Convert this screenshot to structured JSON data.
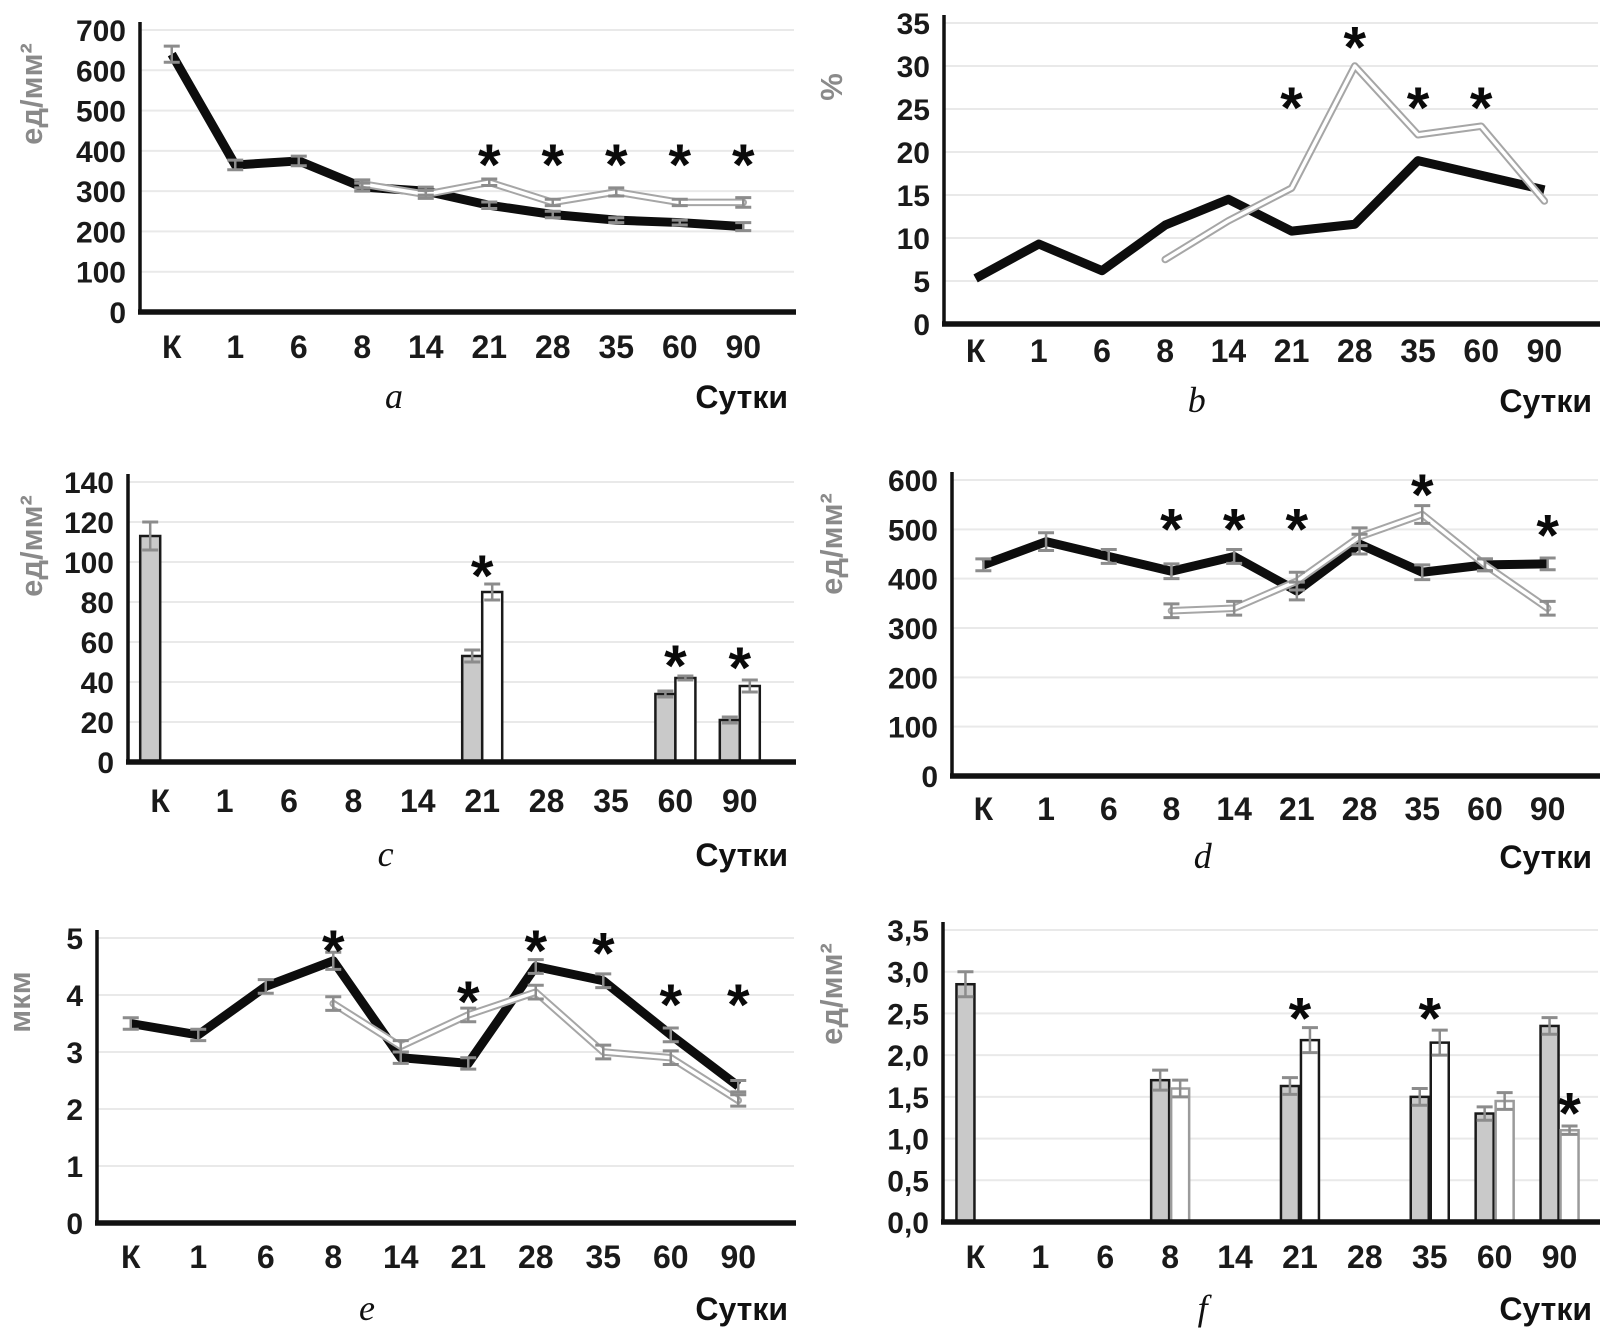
{
  "figure": {
    "background": "#ffffff",
    "significance_marker": "*",
    "colors": {
      "black_series": "#0d0d0d",
      "gray_series": "#a6a6a6",
      "gray_series_core": "#ffffff",
      "error_bar": "#8c8c8c",
      "grid_line": "#e9e9e9",
      "axis_line": "#111111",
      "gray_bar_fill": "#c9c9c9",
      "white_bar_fill": "#ffffff",
      "bar_stroke_dark": "#1a1a1a",
      "bar_stroke_light": "#9b9b9b",
      "unit_label": "#8a8a8a"
    }
  },
  "chart_data": [
    {
      "id": "a",
      "panel_label": "a",
      "type": "line",
      "ylabel": "ед/мм²",
      "xlabel": "Сутки",
      "categories": [
        "К",
        "1",
        "6",
        "8",
        "14",
        "21",
        "28",
        "35",
        "60",
        "90"
      ],
      "ylim": [
        0,
        700
      ],
      "grid": true,
      "legend": "none",
      "yticks": {
        "values": [
          0,
          100,
          200,
          300,
          400,
          500,
          600,
          700
        ],
        "labels": [
          "0",
          "100",
          "200",
          "300",
          "400",
          "500",
          "600",
          "700"
        ]
      },
      "series": [
        {
          "name": "black-solid",
          "kind": "line",
          "style": "thick-black",
          "values": [
            640,
            365,
            375,
            310,
            300,
            265,
            242,
            228,
            222,
            212
          ],
          "err": [
            20,
            12,
            12,
            10,
            10,
            8,
            8,
            6,
            6,
            10
          ]
        },
        {
          "name": "gray-outlined",
          "kind": "line",
          "style": "double-gray",
          "values": [
            null,
            null,
            null,
            318,
            292,
            322,
            272,
            298,
            272,
            272
          ],
          "err": [
            null,
            null,
            null,
            10,
            10,
            8,
            8,
            10,
            8,
            12
          ]
        }
      ],
      "asterisks": [
        {
          "cat": "21",
          "y": 390
        },
        {
          "cat": "28",
          "y": 390
        },
        {
          "cat": "35",
          "y": 390
        },
        {
          "cat": "60",
          "y": 390
        },
        {
          "cat": "90",
          "y": 390
        }
      ]
    },
    {
      "id": "b",
      "panel_label": "b",
      "type": "line",
      "ylabel": "%",
      "xlabel": "Сутки",
      "categories": [
        "К",
        "1",
        "6",
        "8",
        "14",
        "21",
        "28",
        "35",
        "60",
        "90"
      ],
      "ylim": [
        0,
        35
      ],
      "grid": true,
      "legend": "none",
      "yticks": {
        "values": [
          0,
          5,
          10,
          15,
          20,
          25,
          30,
          35
        ],
        "labels": [
          "0",
          "5",
          "10",
          "15",
          "20",
          "25",
          "30",
          "35"
        ]
      },
      "series": [
        {
          "name": "black-solid",
          "kind": "line",
          "style": "thick-black",
          "values": [
            5.3,
            9.3,
            6.2,
            11.5,
            14.5,
            10.8,
            11.6,
            19,
            17.3,
            15.6
          ],
          "err": [
            null,
            null,
            null,
            null,
            null,
            null,
            null,
            null,
            null,
            null
          ]
        },
        {
          "name": "gray-outlined",
          "kind": "line",
          "style": "double-gray",
          "values": [
            null,
            null,
            null,
            7.5,
            12,
            15.8,
            30,
            22,
            23,
            14.3
          ],
          "err": [
            null,
            null,
            null,
            null,
            null,
            null,
            null,
            null,
            null,
            null
          ]
        }
      ],
      "asterisks": [
        {
          "cat": "21",
          "y": 26.3
        },
        {
          "cat": "28",
          "y": 33.3
        },
        {
          "cat": "35",
          "y": 26.3
        },
        {
          "cat": "60",
          "y": 26.3
        }
      ]
    },
    {
      "id": "c",
      "panel_label": "c",
      "type": "bar",
      "ylabel": "ед/мм²",
      "xlabel": "Сутки",
      "categories": [
        "К",
        "1",
        "6",
        "8",
        "14",
        "21",
        "28",
        "35",
        "60",
        "90"
      ],
      "ylim": [
        0,
        140
      ],
      "grid": true,
      "legend": "none",
      "yticks": {
        "values": [
          0,
          20,
          40,
          60,
          80,
          100,
          120,
          140
        ],
        "labels": [
          "0",
          "20",
          "40",
          "60",
          "80",
          "100",
          "120",
          "140"
        ]
      },
      "series": [
        {
          "name": "gray-bars",
          "kind": "bar",
          "fill": "#c9c9c9",
          "values": [
            113,
            null,
            null,
            null,
            null,
            53,
            null,
            null,
            34,
            21
          ],
          "err": [
            7,
            null,
            null,
            null,
            null,
            3,
            null,
            null,
            1.5,
            1.5
          ]
        },
        {
          "name": "white-bars",
          "kind": "bar",
          "fill": "#ffffff",
          "values": [
            null,
            null,
            null,
            null,
            null,
            85,
            null,
            null,
            42,
            38
          ],
          "err": [
            null,
            null,
            null,
            null,
            null,
            4,
            null,
            null,
            1,
            3
          ]
        }
      ],
      "asterisks": [
        {
          "cat": "21",
          "y": 98
        },
        {
          "cat": "60",
          "y": 53
        },
        {
          "cat": "90",
          "y": 52
        }
      ]
    },
    {
      "id": "d",
      "panel_label": "d",
      "type": "line",
      "ylabel": "ед/мм²",
      "xlabel": "Сутки",
      "categories": [
        "К",
        "1",
        "6",
        "8",
        "14",
        "21",
        "28",
        "35",
        "60",
        "90"
      ],
      "ylim": [
        0,
        600
      ],
      "grid": true,
      "legend": "none",
      "yticks": {
        "values": [
          0,
          100,
          200,
          300,
          400,
          500,
          600
        ],
        "labels": [
          "0",
          "100",
          "200",
          "300",
          "400",
          "500",
          "600"
        ]
      },
      "series": [
        {
          "name": "black-solid",
          "kind": "line",
          "style": "thick-black",
          "values": [
            428,
            475,
            445,
            415,
            445,
            375,
            470,
            413,
            428,
            430
          ],
          "err": [
            12,
            18,
            14,
            15,
            14,
            18,
            20,
            15,
            12,
            12
          ]
        },
        {
          "name": "gray-outlined",
          "kind": "line",
          "style": "double-gray",
          "values": [
            null,
            null,
            null,
            335,
            340,
            395,
            485,
            530,
            428,
            340
          ],
          "err": [
            null,
            null,
            null,
            14,
            14,
            18,
            18,
            18,
            12,
            14
          ]
        }
      ],
      "asterisks": [
        {
          "cat": "8",
          "y": 520
        },
        {
          "cat": "14",
          "y": 520
        },
        {
          "cat": "21",
          "y": 520
        },
        {
          "cat": "35",
          "y": 590
        },
        {
          "cat": "90",
          "y": 508
        }
      ]
    },
    {
      "id": "e",
      "panel_label": "e",
      "type": "line",
      "ylabel": "мкм",
      "xlabel": "Сутки",
      "categories": [
        "К",
        "1",
        "6",
        "8",
        "14",
        "21",
        "28",
        "35",
        "60",
        "90"
      ],
      "ylim": [
        0,
        5
      ],
      "grid": true,
      "legend": "none",
      "yticks": {
        "values": [
          0,
          1,
          2,
          3,
          4,
          5
        ],
        "labels": [
          "0",
          "1",
          "2",
          "3",
          "4",
          "5"
        ]
      },
      "series": [
        {
          "name": "black-solid",
          "kind": "line",
          "style": "thick-black",
          "values": [
            3.5,
            3.3,
            4.15,
            4.6,
            2.9,
            2.8,
            4.5,
            4.25,
            3.3,
            2.4
          ],
          "err": [
            0.1,
            0.1,
            0.12,
            0.15,
            0.1,
            0.1,
            0.12,
            0.12,
            0.12,
            0.1
          ]
        },
        {
          "name": "gray-outlined",
          "kind": "line",
          "style": "double-gray",
          "values": [
            null,
            null,
            null,
            3.85,
            3.1,
            3.65,
            4.05,
            3.0,
            2.9,
            2.15
          ],
          "err": [
            null,
            null,
            null,
            0.12,
            0.1,
            0.12,
            0.12,
            0.12,
            0.12,
            0.1
          ]
        }
      ],
      "asterisks": [
        {
          "cat": "8",
          "y": 4.95
        },
        {
          "cat": "21",
          "y": 4.05
        },
        {
          "cat": "28",
          "y": 4.95
        },
        {
          "cat": "35",
          "y": 4.9
        },
        {
          "cat": "60",
          "y": 4.0
        },
        {
          "cat": "90",
          "y": 4.0
        }
      ]
    },
    {
      "id": "f",
      "panel_label": "f",
      "type": "bar",
      "ylabel": "ед/мм²",
      "xlabel": "Сутки",
      "categories": [
        "К",
        "1",
        "6",
        "8",
        "14",
        "21",
        "28",
        "35",
        "60",
        "90"
      ],
      "ylim": [
        0,
        3.5
      ],
      "grid": true,
      "legend": "none",
      "yticks": {
        "values": [
          0,
          0.5,
          1,
          1.5,
          2,
          2.5,
          3,
          3.5
        ],
        "labels": [
          "0,0",
          "0,5",
          "1,0",
          "1,5",
          "2,0",
          "2,5",
          "3,0",
          "3,5"
        ]
      },
      "series": [
        {
          "name": "gray-bars",
          "kind": "bar",
          "fill": "#c9c9c9",
          "values": [
            2.85,
            null,
            null,
            1.7,
            null,
            1.63,
            null,
            1.5,
            1.3,
            2.35
          ],
          "err": [
            0.15,
            null,
            null,
            0.12,
            null,
            0.1,
            null,
            0.1,
            0.08,
            0.1
          ]
        },
        {
          "name": "white-bars",
          "kind": "bar",
          "fill": "#ffffff",
          "values": [
            null,
            null,
            null,
            1.6,
            null,
            2.18,
            null,
            2.15,
            1.45,
            1.1
          ],
          "err": [
            null,
            null,
            null,
            0.1,
            null,
            0.15,
            null,
            0.15,
            0.1,
            0.05
          ],
          "strokes": [
            null,
            null,
            null,
            "#9b9b9b",
            null,
            "#1a1a1a",
            null,
            "#1a1a1a",
            "#9b9b9b",
            "#9b9b9b"
          ]
        }
      ],
      "asterisks": [
        {
          "cat": "21",
          "y": 2.56
        },
        {
          "cat": "35",
          "y": 2.56
        },
        {
          "cat": "90",
          "y": 1.42,
          "dx": 10
        }
      ]
    }
  ]
}
